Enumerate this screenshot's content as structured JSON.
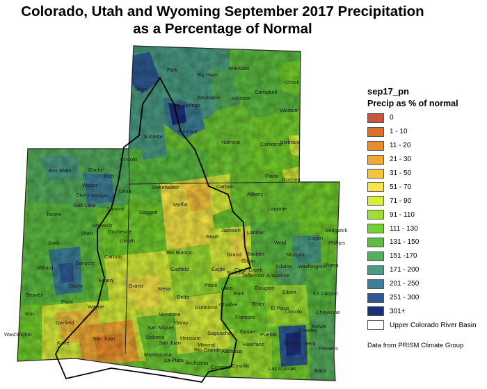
{
  "title": {
    "line1": "Colorado, Utah and Wyoming September 2017 Precipitation",
    "line2": "as a Percentage of Normal"
  },
  "legend": {
    "layer": "sep17_pn",
    "title": "Precip as % of normal",
    "items": [
      {
        "label": "0",
        "color": "#c8563c"
      },
      {
        "label": "1 - 10",
        "color": "#db6f2c"
      },
      {
        "label": "11 - 20",
        "color": "#ea8c2c"
      },
      {
        "label": "21 - 30",
        "color": "#f2a933"
      },
      {
        "label": "31 - 50",
        "color": "#f5c43c"
      },
      {
        "label": "51 - 70",
        "color": "#f6e646"
      },
      {
        "label": "71 - 90",
        "color": "#d8ef3a"
      },
      {
        "label": "91 - 110",
        "color": "#9de032"
      },
      {
        "label": "111 - 130",
        "color": "#74d02c"
      },
      {
        "label": "131 - 150",
        "color": "#5cbd40"
      },
      {
        "label": "151 -170",
        "color": "#55ad5e"
      },
      {
        "label": "171 - 200",
        "color": "#4a9c84"
      },
      {
        "label": "201 - 250",
        "color": "#3d7f99"
      },
      {
        "label": "251 - 300",
        "color": "#2d5a92"
      },
      {
        "label": "301+",
        "color": "#1c2f7a"
      },
      {
        "label": "Upper Colorado River Basin",
        "color": "#ffffff"
      }
    ]
  },
  "credit": "Data from PRISM Climate Group",
  "places": [
    "Park",
    "Big Horn",
    "Sheridan",
    "Crook",
    "Teton",
    "Washakie",
    "Johnson",
    "Campbell",
    "Hot Springs",
    "Weston",
    "Fremont",
    "Sublette",
    "Natrona",
    "Converse",
    "Niobrara",
    "Lincoln",
    "Sweetwater",
    "Carbon",
    "Albany",
    "Platte",
    "Goshen",
    "Laramie",
    "Box Elder",
    "Cache",
    "Rich",
    "Weber",
    "Davis",
    "Morgan",
    "Uinta",
    "Salt Lake",
    "Summit",
    "Daggett",
    "Tooele",
    "Utah",
    "Wasatch",
    "Duchesne",
    "Uintah",
    "Juab",
    "Sanpete",
    "Carbon",
    "Millard",
    "Sevier",
    "Emery",
    "Grand",
    "Beaver",
    "Piute",
    "Wayne",
    "Iron",
    "Garfield",
    "Washington",
    "Kane",
    "San Juan",
    "Moffat",
    "Routt",
    "Jackson",
    "Larimer",
    "Weld",
    "Logan",
    "Sedgwick",
    "Phillips",
    "Rio Blanco",
    "Grand",
    "Boulder",
    "Morgan",
    "Washington",
    "Yuma",
    "Garfield",
    "Eagle",
    "Summit",
    "Gilpin",
    "Clear Creek",
    "Jefferson",
    "Arapahoe",
    "Adams",
    "Mesa",
    "Pitkin",
    "Lake",
    "Douglas",
    "Elbert",
    "Kit Carson",
    "Delta",
    "Gunnison",
    "Chaffee",
    "Park",
    "Teller",
    "El Paso",
    "Lincoln",
    "Cheyenne",
    "Montrose",
    "Ouray",
    "Fremont",
    "Kiowa",
    "San Miguel",
    "Hinsdale",
    "Saguache",
    "Custer",
    "Pueblo",
    "Crowley",
    "Otero",
    "Bent",
    "Prowers",
    "Dolores",
    "San Juan",
    "Mineral",
    "Rio Grande",
    "Alamosa",
    "Huerfano",
    "Montezuma",
    "La Plata",
    "Archuleta",
    "Conejos",
    "Costilla",
    "Las Animas",
    "Baca"
  ]
}
